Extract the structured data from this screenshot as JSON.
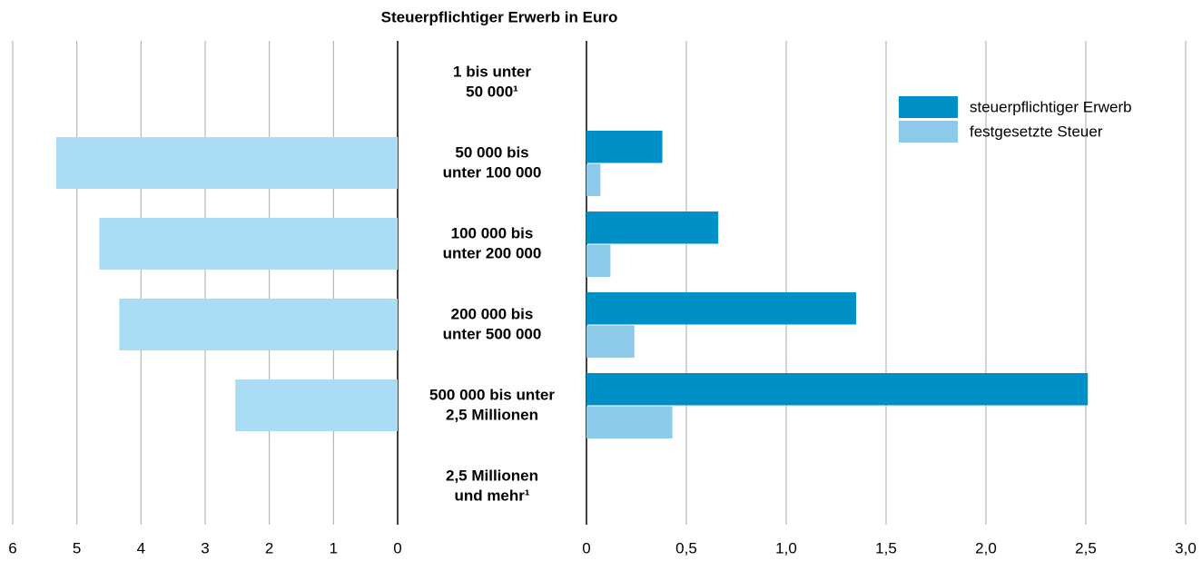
{
  "chart_data": [
    {
      "type": "bar",
      "title": "Steuerpflichtiger Erwerb in Euro",
      "categories": [
        [
          "1 bis unter",
          "50 000¹"
        ],
        [
          "50 000 bis",
          "unter 100 000"
        ],
        [
          "100 000 bis",
          "unter 200 000"
        ],
        [
          "200 000 bis",
          "unter 500 000"
        ],
        [
          "500 000 bis unter",
          "2,5 Millionen"
        ],
        [
          "2,5 Millionen",
          "und mehr¹"
        ]
      ],
      "values": [
        null,
        5.32,
        4.65,
        4.34,
        2.53,
        null
      ],
      "color": "#aadcf5",
      "xlim": [
        6,
        0
      ],
      "xticks": [
        6,
        5,
        4,
        3,
        2,
        1,
        0
      ],
      "grid": true
    },
    {
      "type": "groupedbar",
      "series": [
        {
          "name": "steuerpflichtiger Erwerb",
          "color": "#0090c8",
          "values": [
            null,
            0.38,
            0.66,
            1.35,
            2.51,
            null
          ]
        },
        {
          "name": "festgesetzte Steuer",
          "color": "#8dcaea",
          "values": [
            null,
            0.07,
            0.12,
            0.24,
            0.43,
            null
          ]
        }
      ],
      "xlim": [
        0,
        3
      ],
      "xticks": [
        0,
        {
          "value": 0.5,
          "label": "0,5"
        },
        {
          "value": 1,
          "label": "1,0"
        },
        {
          "value": 1.5,
          "label": "1,5"
        },
        {
          "value": 2,
          "label": "2,0"
        },
        {
          "value": 2.5,
          "label": "2,5"
        },
        {
          "value": 3,
          "label": "3,0"
        }
      ],
      "grid": true,
      "legend": "top-right"
    }
  ]
}
